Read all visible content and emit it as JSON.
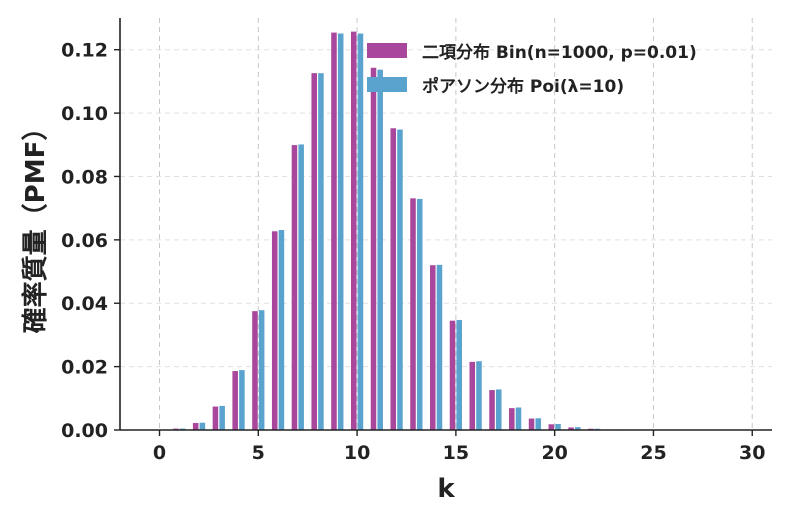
{
  "chart_data": {
    "type": "bar",
    "title": "",
    "xlabel": "k",
    "ylabel": "確率質量（PMF）",
    "xlim": [
      -2,
      31
    ],
    "ylim": [
      0,
      0.13
    ],
    "xticks": [
      0,
      5,
      10,
      15,
      20,
      25,
      30
    ],
    "xtick_labels": [
      "0",
      "5",
      "10",
      "15",
      "20",
      "25",
      "30"
    ],
    "yticks": [
      0,
      0.02,
      0.04,
      0.06,
      0.08,
      0.1,
      0.12
    ],
    "ytick_labels": [
      "0.00",
      "0.02",
      "0.04",
      "0.06",
      "0.08",
      "0.10",
      "0.12"
    ],
    "grid": true,
    "legend_position": "top-right",
    "k": [
      0,
      1,
      2,
      3,
      4,
      5,
      6,
      7,
      8,
      9,
      10,
      11,
      12,
      13,
      14,
      15,
      16,
      17,
      18,
      19,
      20,
      21,
      22,
      23,
      24,
      25,
      26,
      27,
      28,
      29,
      30
    ],
    "series": [
      {
        "name": "二項分布 Bin(n=1000, p=0.01)",
        "color": "#a8479b",
        "values": [
          4e-05,
          0.00044,
          0.0022,
          0.0074,
          0.0186,
          0.0375,
          0.0627,
          0.0899,
          0.1126,
          0.1254,
          0.1257,
          0.1143,
          0.0952,
          0.0731,
          0.052,
          0.0345,
          0.0215,
          0.0126,
          0.0069,
          0.0036,
          0.0018,
          0.0008,
          0.0004,
          0.00016,
          6e-05,
          2e-05,
          1e-05,
          0.0,
          0.0,
          0.0,
          0.0
        ]
      },
      {
        "name": "ポアソン分布 Poi(λ=10)",
        "color": "#5ba3cf",
        "values": [
          5e-05,
          0.00045,
          0.0023,
          0.0076,
          0.0189,
          0.0378,
          0.0631,
          0.0901,
          0.1126,
          0.1251,
          0.1251,
          0.1137,
          0.0948,
          0.0729,
          0.0521,
          0.0347,
          0.0217,
          0.0128,
          0.0071,
          0.0037,
          0.0019,
          0.0009,
          0.0004,
          0.00018,
          7e-05,
          3e-05,
          1e-05,
          0.0,
          0.0,
          0.0,
          0.0
        ]
      }
    ]
  }
}
